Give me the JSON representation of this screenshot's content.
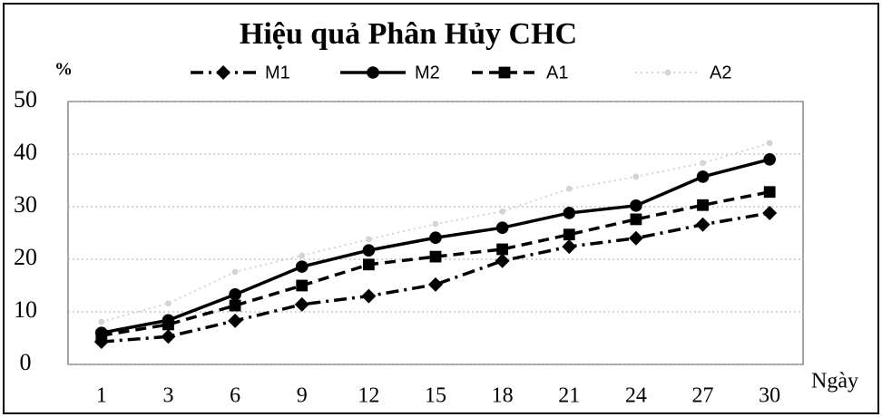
{
  "chart_data": {
    "type": "line",
    "title": "Hiệu quả Phân Hủy CHC",
    "y_label": "%",
    "x_label": "Ngày",
    "categories": [
      "1",
      "3",
      "6",
      "9",
      "12",
      "15",
      "18",
      "21",
      "24",
      "27",
      "30"
    ],
    "series": [
      {
        "name": "M1",
        "color": "#000000",
        "marker": "diamond",
        "dash": "dashdot",
        "values": [
          4.3,
          5.3,
          8.3,
          11.4,
          13,
          15.2,
          19.7,
          22.4,
          24,
          26.6,
          28.8
        ]
      },
      {
        "name": "M2",
        "color": "#000000",
        "marker": "circle",
        "dash": "solid",
        "values": [
          6,
          8.4,
          13.3,
          18.6,
          21.7,
          24.1,
          26,
          28.8,
          30.2,
          35.7,
          39
        ]
      },
      {
        "name": "A1",
        "color": "#000000",
        "marker": "square",
        "dash": "dashed",
        "values": [
          5.5,
          7.6,
          11.2,
          15,
          19,
          20.5,
          21.9,
          24.7,
          27.6,
          30.3,
          32.8
        ]
      },
      {
        "name": "A2",
        "color": "#d4d4d4",
        "marker": "circle",
        "dash": "dotted",
        "values": [
          8.1,
          11.6,
          17.6,
          20.7,
          23.8,
          26.7,
          29.1,
          33.4,
          35.7,
          38.3,
          42.1
        ]
      }
    ],
    "ylim": [
      0,
      50
    ],
    "yticks": [
      0,
      10,
      20,
      30,
      40,
      50
    ],
    "grid": true,
    "legend": "top"
  }
}
